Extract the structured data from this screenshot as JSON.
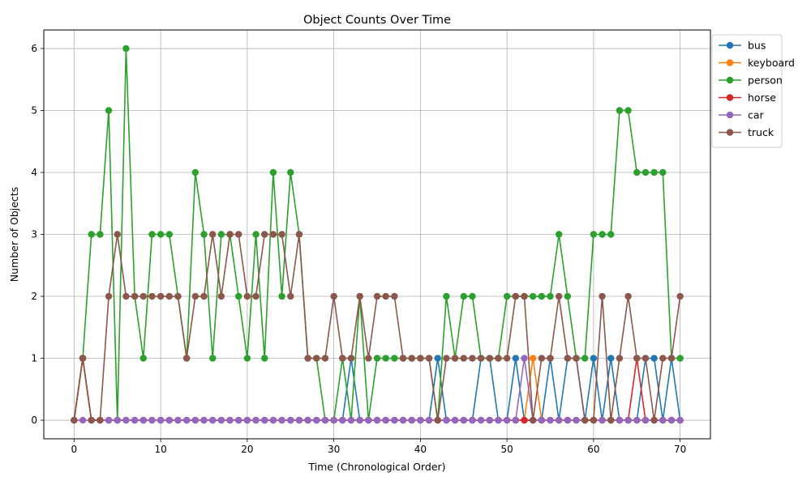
{
  "chart_data": {
    "type": "line",
    "title": "Object Counts Over Time",
    "xlabel": "Time (Chronological Order)",
    "ylabel": "Number of Objects",
    "xlim": [
      -3.5,
      73.5
    ],
    "ylim": [
      -0.3,
      6.3
    ],
    "xticks": [
      0,
      10,
      20,
      30,
      40,
      50,
      60,
      70
    ],
    "yticks": [
      0,
      1,
      2,
      3,
      4,
      5,
      6
    ],
    "grid": true,
    "legend_position": "outside upper right",
    "x": [
      0,
      1,
      2,
      3,
      4,
      5,
      6,
      7,
      8,
      9,
      10,
      11,
      12,
      13,
      14,
      15,
      16,
      17,
      18,
      19,
      20,
      21,
      22,
      23,
      24,
      25,
      26,
      27,
      28,
      29,
      30,
      31,
      32,
      33,
      34,
      35,
      36,
      37,
      38,
      39,
      40,
      41,
      42,
      43,
      44,
      45,
      46,
      47,
      48,
      49,
      50,
      51,
      52,
      53,
      54,
      55,
      56,
      57,
      58,
      59,
      60,
      61,
      62,
      63,
      64,
      65,
      66,
      67,
      68,
      69,
      70
    ],
    "series": [
      {
        "name": "bus",
        "color": "#1f77b4",
        "values": [
          0,
          1,
          0,
          0,
          0,
          0,
          0,
          0,
          0,
          0,
          0,
          0,
          0,
          0,
          0,
          0,
          0,
          0,
          0,
          0,
          0,
          0,
          0,
          0,
          0,
          0,
          0,
          0,
          0,
          0,
          0,
          0,
          1,
          0,
          0,
          0,
          0,
          0,
          0,
          0,
          0,
          0,
          1,
          0,
          0,
          0,
          0,
          1,
          1,
          0,
          0,
          1,
          0,
          0,
          0,
          1,
          0,
          1,
          1,
          0,
          1,
          0,
          1,
          0,
          0,
          0,
          1,
          1,
          0,
          1,
          0
        ]
      },
      {
        "name": "keyboard",
        "color": "#ff7f0e",
        "values": [
          0,
          1,
          0,
          0,
          0,
          0,
          0,
          0,
          0,
          0,
          0,
          0,
          0,
          0,
          0,
          0,
          0,
          0,
          0,
          0,
          0,
          0,
          0,
          0,
          0,
          0,
          0,
          0,
          0,
          0,
          0,
          0,
          0,
          0,
          0,
          0,
          0,
          0,
          0,
          0,
          0,
          0,
          0,
          0,
          0,
          0,
          0,
          0,
          0,
          0,
          0,
          0,
          0,
          1,
          0,
          0,
          0,
          0,
          0,
          0,
          0,
          0,
          0,
          0,
          0,
          0,
          0,
          0,
          0,
          0,
          0
        ]
      },
      {
        "name": "person",
        "color": "#2ca02c",
        "values": [
          0,
          1,
          3,
          3,
          5,
          0,
          6,
          2,
          1,
          3,
          3,
          3,
          2,
          1,
          4,
          3,
          1,
          3,
          3,
          2,
          1,
          3,
          1,
          4,
          2,
          4,
          3,
          1,
          1,
          0,
          0,
          1,
          0,
          2,
          0,
          1,
          1,
          1,
          1,
          1,
          1,
          1,
          0,
          2,
          1,
          2,
          2,
          1,
          1,
          1,
          2,
          2,
          2,
          2,
          2,
          2,
          3,
          2,
          1,
          1,
          3,
          3,
          3,
          5,
          5,
          4,
          4,
          4,
          4,
          1,
          1
        ]
      },
      {
        "name": "horse",
        "color": "#d62728",
        "values": [
          0,
          1,
          0,
          0,
          0,
          0,
          0,
          0,
          0,
          0,
          0,
          0,
          0,
          0,
          0,
          0,
          0,
          0,
          0,
          0,
          0,
          0,
          0,
          0,
          0,
          0,
          0,
          0,
          0,
          0,
          0,
          0,
          0,
          0,
          0,
          0,
          0,
          0,
          0,
          0,
          0,
          0,
          0,
          0,
          0,
          0,
          0,
          0,
          0,
          0,
          0,
          0,
          0,
          0,
          0,
          0,
          0,
          0,
          0,
          0,
          0,
          0,
          0,
          0,
          0,
          1,
          0,
          0,
          0,
          0,
          0
        ]
      },
      {
        "name": "car",
        "color": "#9467bd",
        "values": [
          0,
          0,
          0,
          0,
          0,
          0,
          0,
          0,
          0,
          0,
          0,
          0,
          0,
          0,
          0,
          0,
          0,
          0,
          0,
          0,
          0,
          0,
          0,
          0,
          0,
          0,
          0,
          0,
          0,
          0,
          0,
          0,
          0,
          0,
          0,
          0,
          0,
          0,
          0,
          0,
          0,
          0,
          0,
          0,
          0,
          0,
          0,
          0,
          0,
          0,
          0,
          0,
          1,
          0,
          0,
          0,
          0,
          0,
          0,
          0,
          0,
          0,
          0,
          0,
          0,
          0,
          0,
          0,
          0,
          0,
          0
        ]
      },
      {
        "name": "truck",
        "color": "#8c564b",
        "values": [
          0,
          1,
          0,
          0,
          2,
          3,
          2,
          2,
          2,
          2,
          2,
          2,
          2,
          1,
          2,
          2,
          3,
          2,
          3,
          3,
          2,
          2,
          3,
          3,
          3,
          2,
          3,
          1,
          1,
          1,
          2,
          1,
          1,
          2,
          1,
          2,
          2,
          2,
          1,
          1,
          1,
          1,
          0,
          1,
          1,
          1,
          1,
          1,
          1,
          1,
          1,
          2,
          2,
          0,
          1,
          1,
          2,
          1,
          1,
          0,
          0,
          2,
          0,
          1,
          2,
          1,
          1,
          0,
          1,
          1,
          2
        ]
      }
    ]
  }
}
